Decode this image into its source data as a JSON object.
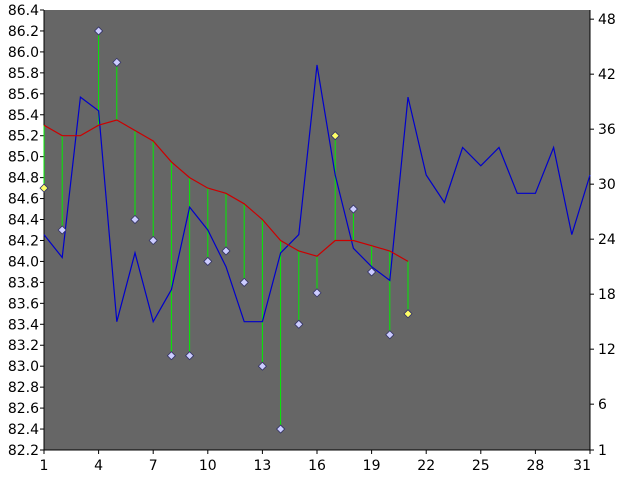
{
  "chart_data": {
    "type": "line",
    "title": "",
    "xlabel": "",
    "ylabel": "",
    "grid": false,
    "legend": "none",
    "xlim": [
      1,
      31
    ],
    "ylim_left": [
      82.2,
      86.4
    ],
    "ylim_right": [
      1,
      49
    ],
    "x_ticks": [
      "1",
      "4",
      "7",
      "10",
      "13",
      "16",
      "19",
      "22",
      "25",
      "28",
      "31"
    ],
    "y_left_ticks": [
      "82.2",
      "82.4",
      "82.6",
      "82.8",
      "83.0",
      "83.2",
      "83.4",
      "83.6",
      "83.8",
      "84.0",
      "84.2",
      "84.4",
      "84.6",
      "84.8",
      "85.0",
      "85.2",
      "85.4",
      "85.6",
      "85.8",
      "86.0",
      "86.2",
      "86.4"
    ],
    "y_right_ticks": [
      "1",
      "6",
      "12",
      "18",
      "24",
      "30",
      "36",
      "42",
      "48"
    ],
    "series": [
      {
        "axis": "right",
        "color": "#0000cc",
        "x": [
          1,
          2,
          3,
          4,
          5,
          6,
          7,
          8,
          9,
          10,
          11,
          12,
          13,
          14,
          15,
          16,
          17,
          18,
          19,
          20,
          21,
          22,
          23,
          24,
          25,
          26,
          27,
          28,
          29,
          30,
          31
        ],
        "y": [
          24.5,
          22,
          39.5,
          38,
          15,
          22.5,
          15,
          18.5,
          27.5,
          25,
          21,
          15,
          15,
          22.5,
          24.5,
          43,
          31,
          23,
          21,
          19.5,
          39.5,
          31,
          28,
          34,
          32,
          34,
          29,
          29,
          34,
          24.5,
          31
        ]
      },
      {
        "axis": "left",
        "color": "#cc0000",
        "x": [
          1,
          2,
          3,
          4,
          5,
          6,
          7,
          8,
          9,
          10,
          11,
          12,
          13,
          14,
          15,
          16,
          17,
          18,
          19,
          20,
          21
        ],
        "y": [
          85.3,
          85.2,
          85.2,
          85.3,
          85.35,
          85.25,
          85.15,
          84.95,
          84.8,
          84.7,
          84.65,
          84.55,
          84.4,
          84.2,
          84.1,
          84.05,
          84.2,
          84.2,
          84.15,
          84.1,
          84.0
        ]
      },
      {
        "axis": "left",
        "x": [
          1,
          2,
          3,
          4,
          5,
          6,
          7,
          8,
          9,
          10,
          11,
          12,
          13,
          14,
          15,
          16,
          17,
          18,
          19,
          20,
          21
        ],
        "y": [
          84.7,
          84.3,
          null,
          86.2,
          85.9,
          84.4,
          84.2,
          83.1,
          83.1,
          84.0,
          84.1,
          83.8,
          83.0,
          82.4,
          83.4,
          83.7,
          85.2,
          84.5,
          83.9,
          83.3,
          83.5
        ],
        "highlight": [
          true,
          false,
          false,
          false,
          false,
          false,
          false,
          false,
          false,
          false,
          false,
          false,
          false,
          false,
          false,
          false,
          true,
          false,
          false,
          false,
          true
        ]
      }
    ],
    "colors": {
      "plot_background": "#666666",
      "drop_line": "#00ee00",
      "marker": "#ccccff",
      "marker_highlight": "#ffff66",
      "marker_stroke": "#333366"
    }
  }
}
